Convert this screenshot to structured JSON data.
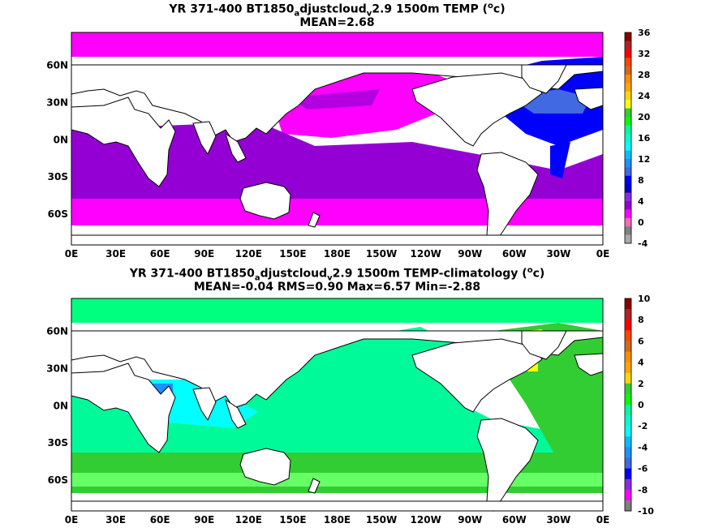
{
  "panels": [
    {
      "title_pre": "YR 371-400 BT1850",
      "title_sub1": "a",
      "title_mid": "djustcloud",
      "title_sub2": "v",
      "title_post": "2.9 1500m TEMP (",
      "title_sup": "o",
      "title_end": "c)",
      "stats": "MEAN=2.68",
      "colorbar": {
        "ticks": [
          "36",
          "32",
          "28",
          "24",
          "20",
          "16",
          "12",
          "8",
          "4",
          "0",
          "-4"
        ],
        "colors": [
          "#8b0000",
          "#b22222",
          "#ff0000",
          "#ff4500",
          "#d2691e",
          "#ff8c00",
          "#ffa500",
          "#ffd700",
          "#ffff00",
          "#32cd32",
          "#00ff00",
          "#00fa9a",
          "#00ffcc",
          "#00ffff",
          "#00bfff",
          "#1e90ff",
          "#4169e1",
          "#0000ff",
          "#0000cd",
          "#8a2be2",
          "#9400d3",
          "#ff00ff",
          "#ff69b4",
          "#808080",
          "#a9a9a9"
        ]
      },
      "ocean_colors": {
        "north_pacific": "#ff00ff",
        "south_ocean": "#9400d3",
        "atlantic": "#0000ff",
        "subpolar": "#ff00ff"
      }
    },
    {
      "title_pre": "YR 371-400 BT1850",
      "title_sub1": "a",
      "title_mid": "djustcloud",
      "title_sub2": "v",
      "title_post": "2.9 1500m TEMP-climatology (",
      "title_sup": "o",
      "title_end": "c)",
      "stats": "MEAN=-0.04   RMS=0.90   Max=6.57   Min=-2.88",
      "colorbar": {
        "ticks": [
          "10",
          "8",
          "6",
          "4",
          "2",
          "0",
          "-2",
          "-4",
          "-6",
          "-8",
          "-10"
        ],
        "colors": [
          "#8b0000",
          "#b22222",
          "#ff0000",
          "#ff4500",
          "#d2691e",
          "#ff8c00",
          "#ffa500",
          "#ffd700",
          "#32cd32",
          "#00ff00",
          "#00fa9a",
          "#00ffcc",
          "#00ffff",
          "#00bfff",
          "#1e90ff",
          "#4169e1",
          "#0000ff",
          "#8a2be2",
          "#ff00ff",
          "#808080"
        ]
      }
    }
  ],
  "axes": {
    "x_ticks": [
      "0E",
      "30E",
      "60E",
      "90E",
      "120E",
      "150E",
      "180E",
      "150W",
      "120W",
      "90W",
      "60W",
      "30W",
      "0E"
    ],
    "y_ticks": [
      "60N",
      "30N",
      "0N",
      "30S",
      "60S"
    ]
  }
}
